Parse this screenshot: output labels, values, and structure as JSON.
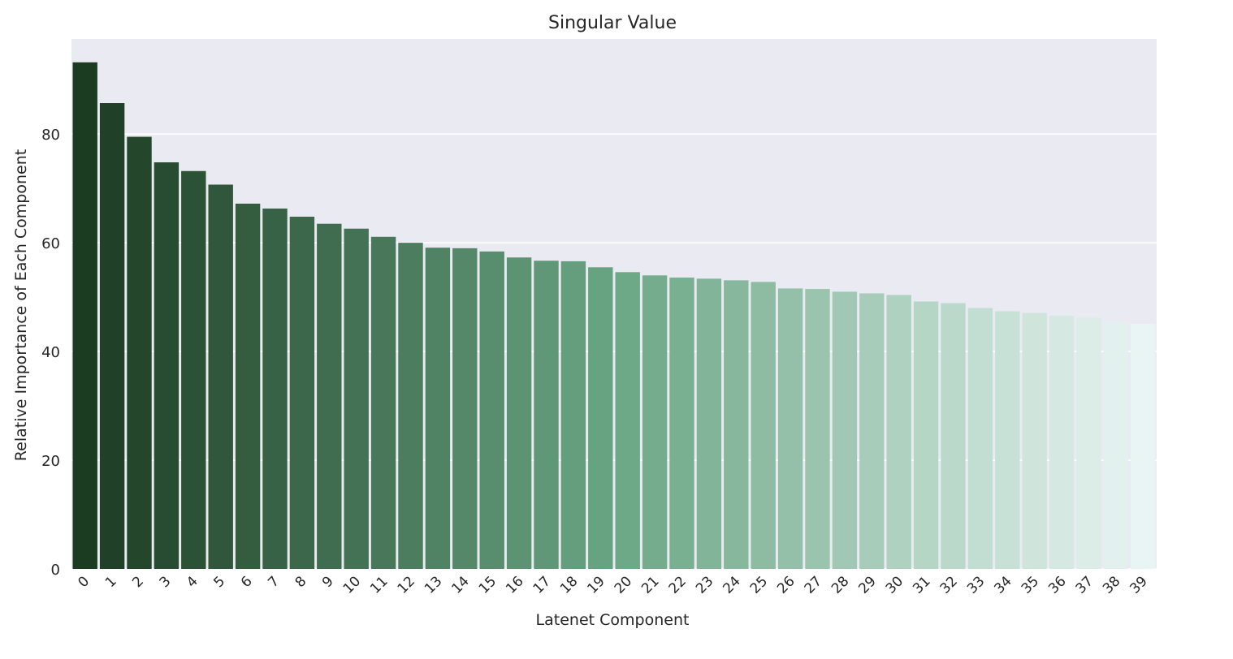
{
  "chart_data": {
    "type": "bar",
    "title": "Singular Value",
    "xlabel": "Latenet Component",
    "ylabel": "Relative Importance of Each Component",
    "categories": [
      "0",
      "1",
      "2",
      "3",
      "4",
      "5",
      "6",
      "7",
      "8",
      "9",
      "10",
      "11",
      "12",
      "13",
      "14",
      "15",
      "16",
      "17",
      "18",
      "19",
      "20",
      "21",
      "22",
      "23",
      "24",
      "25",
      "26",
      "27",
      "28",
      "29",
      "30",
      "31",
      "32",
      "33",
      "34",
      "35",
      "36",
      "37",
      "38",
      "39"
    ],
    "values": [
      93.2,
      85.7,
      79.5,
      74.8,
      73.2,
      70.7,
      67.2,
      66.3,
      64.8,
      63.5,
      62.6,
      61.1,
      60.0,
      59.1,
      59.0,
      58.4,
      57.3,
      56.7,
      56.6,
      55.5,
      54.6,
      54.0,
      53.6,
      53.4,
      53.1,
      52.8,
      51.6,
      51.5,
      51.0,
      50.7,
      50.4,
      49.2,
      48.9,
      48.0,
      47.4,
      47.1,
      46.6,
      46.2,
      45.3,
      45.1
    ],
    "yticks": [
      "0",
      "20",
      "40",
      "60",
      "80"
    ],
    "ylim": [
      0,
      97.5
    ],
    "grid": true,
    "palette": {
      "start": "#1c3c22",
      "mid": "#6aa684",
      "end": "#e9f5f3",
      "axes_bg": "#eaeaf2",
      "grid": "#ffffff"
    }
  }
}
